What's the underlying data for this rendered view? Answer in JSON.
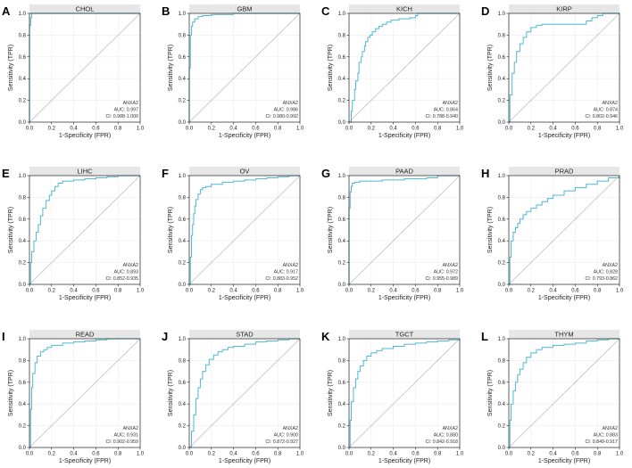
{
  "figure": {
    "axis_ticks": [
      "0.0",
      "0.2",
      "0.4",
      "0.6",
      "0.8",
      "1.0"
    ],
    "curve_color": "#4FB6D8",
    "diagonal_color": "#BFBFBF",
    "strip_color": "#E6E6E6"
  },
  "chart_data": [
    {
      "type": "line",
      "panel_label": "A",
      "title": "CHOL",
      "xlabel": "1-Specificity (FPR)",
      "ylabel": "Sensitivity (TPR)",
      "xlim": [
        0,
        1
      ],
      "ylim": [
        0,
        1
      ],
      "series": [
        {
          "name": "ANXA2",
          "x": [
            0,
            0,
            0.01,
            0.01,
            0.02,
            0.02,
            1.0
          ],
          "y": [
            0,
            0.89,
            0.89,
            0.96,
            0.96,
            1.0,
            1.0
          ]
        },
        {
          "x": [
            0,
            1
          ],
          "y": [
            0,
            1
          ]
        }
      ],
      "annotation": {
        "gene": "ANXA2",
        "auc": "AUC: 0.997",
        "ci": "CI: 0.988-1.000"
      }
    },
    {
      "type": "line",
      "panel_label": "B",
      "title": "GBM",
      "xlabel": "1-Specificity (FPR)",
      "ylabel": "Sensitivity (TPR)",
      "xlim": [
        0,
        1
      ],
      "ylim": [
        0,
        1
      ],
      "series": [
        {
          "name": "ANXA2",
          "x": [
            0,
            0,
            0.01,
            0.02,
            0.03,
            0.05,
            0.08,
            0.12,
            0.2,
            0.4,
            1.0
          ],
          "y": [
            0,
            0.5,
            0.8,
            0.88,
            0.92,
            0.95,
            0.97,
            0.98,
            0.99,
            1.0,
            1.0
          ]
        },
        {
          "x": [
            0,
            1
          ],
          "y": [
            0,
            1
          ]
        }
      ],
      "annotation": {
        "gene": "ANXA2",
        "auc": "AUC: 0.986",
        "ci": "CI: 0.980-0.992"
      }
    },
    {
      "type": "line",
      "panel_label": "C",
      "title": "KICH",
      "xlabel": "1-Specificity (FPR)",
      "ylabel": "Sensitivity (TPR)",
      "xlim": [
        0,
        1
      ],
      "ylim": [
        0,
        1
      ],
      "series": [
        {
          "name": "ANXA2",
          "x": [
            0,
            0.02,
            0.03,
            0.05,
            0.06,
            0.08,
            0.09,
            0.11,
            0.12,
            0.14,
            0.15,
            0.17,
            0.19,
            0.21,
            0.24,
            0.27,
            0.3,
            0.34,
            0.38,
            0.45,
            0.55,
            0.6,
            0.62,
            0.7,
            1.0
          ],
          "y": [
            0,
            0.1,
            0.2,
            0.3,
            0.38,
            0.45,
            0.55,
            0.6,
            0.65,
            0.7,
            0.74,
            0.78,
            0.8,
            0.83,
            0.86,
            0.88,
            0.9,
            0.92,
            0.94,
            0.95,
            0.96,
            0.98,
            1.0,
            1.0,
            1.0
          ]
        },
        {
          "x": [
            0,
            1
          ],
          "y": [
            0,
            1
          ]
        }
      ],
      "annotation": {
        "gene": "ANXA2",
        "auc": "AUC: 0.864",
        "ci": "CI: 0.788-0.940"
      }
    },
    {
      "type": "line",
      "panel_label": "D",
      "title": "KIRP",
      "xlabel": "1-Specificity (FPR)",
      "ylabel": "Sensitivity (TPR)",
      "xlim": [
        0,
        1
      ],
      "ylim": [
        0,
        1
      ],
      "series": [
        {
          "name": "ANXA2",
          "x": [
            0,
            0.01,
            0.03,
            0.05,
            0.07,
            0.1,
            0.13,
            0.16,
            0.2,
            0.25,
            0.3,
            0.4,
            0.5,
            0.6,
            0.7,
            0.75,
            0.8,
            0.85,
            1.0
          ],
          "y": [
            0,
            0.25,
            0.45,
            0.55,
            0.65,
            0.72,
            0.78,
            0.83,
            0.87,
            0.89,
            0.9,
            0.9,
            0.9,
            0.9,
            0.93,
            0.96,
            0.98,
            1.0,
            1.0
          ]
        },
        {
          "x": [
            0,
            1
          ],
          "y": [
            0,
            1
          ]
        }
      ],
      "annotation": {
        "gene": "ANXA2",
        "auc": "AUC: 0.874",
        "ci": "CI: 0.802-0.946"
      }
    },
    {
      "type": "line",
      "panel_label": "E",
      "title": "LIHC",
      "xlabel": "1-Specificity (FPR)",
      "ylabel": "Sensitivity (TPR)",
      "xlim": [
        0,
        1
      ],
      "ylim": [
        0,
        1
      ],
      "series": [
        {
          "name": "ANXA2",
          "x": [
            0,
            0.01,
            0.02,
            0.04,
            0.06,
            0.08,
            0.1,
            0.12,
            0.15,
            0.18,
            0.2,
            0.23,
            0.26,
            0.3,
            0.4,
            0.5,
            0.6,
            0.7,
            0.8,
            0.9,
            1.0
          ],
          "y": [
            0,
            0.2,
            0.3,
            0.4,
            0.48,
            0.55,
            0.63,
            0.7,
            0.77,
            0.82,
            0.86,
            0.9,
            0.93,
            0.95,
            0.96,
            0.97,
            0.98,
            0.99,
            1.0,
            1.0,
            1.0
          ]
        },
        {
          "x": [
            0,
            1
          ],
          "y": [
            0,
            1
          ]
        }
      ],
      "annotation": {
        "gene": "ANXA2",
        "auc": "AUC: 0.893",
        "ci": "CI: 0.852-0.935"
      }
    },
    {
      "type": "line",
      "panel_label": "F",
      "title": "OV",
      "xlabel": "1-Specificity (FPR)",
      "ylabel": "Sensitivity (TPR)",
      "xlim": [
        0,
        1
      ],
      "ylim": [
        0,
        1
      ],
      "series": [
        {
          "name": "ANXA2",
          "x": [
            0,
            0.01,
            0.02,
            0.03,
            0.04,
            0.05,
            0.06,
            0.08,
            0.1,
            0.12,
            0.15,
            0.2,
            0.3,
            0.4,
            0.5,
            0.6,
            0.7,
            0.8,
            0.9,
            1.0
          ],
          "y": [
            0,
            0.25,
            0.45,
            0.55,
            0.65,
            0.72,
            0.78,
            0.83,
            0.87,
            0.89,
            0.9,
            0.92,
            0.94,
            0.95,
            0.96,
            0.97,
            0.98,
            0.99,
            1.0,
            1.0
          ]
        },
        {
          "x": [
            0,
            1
          ],
          "y": [
            0,
            1
          ]
        }
      ],
      "annotation": {
        "gene": "ANXA2",
        "auc": "AUC: 0.917",
        "ci": "CI: 0.883-0.952"
      }
    },
    {
      "type": "line",
      "panel_label": "G",
      "title": "PAAD",
      "xlabel": "1-Specificity (FPR)",
      "ylabel": "Sensitivity (TPR)",
      "xlim": [
        0,
        1
      ],
      "ylim": [
        0,
        1
      ],
      "series": [
        {
          "name": "ANXA2",
          "x": [
            0,
            0,
            0.01,
            0.02,
            0.03,
            0.05,
            0.1,
            0.3,
            0.5,
            0.7,
            0.8,
            1.0
          ],
          "y": [
            0,
            0.7,
            0.85,
            0.9,
            0.93,
            0.94,
            0.95,
            0.96,
            0.97,
            0.98,
            1.0,
            1.0
          ]
        },
        {
          "x": [
            0,
            1
          ],
          "y": [
            0,
            1
          ]
        }
      ],
      "annotation": {
        "gene": "ANXA2",
        "auc": "AUC: 0.972",
        "ci": "CI: 0.955-0.989"
      }
    },
    {
      "type": "line",
      "panel_label": "H",
      "title": "PRAD",
      "xlabel": "1-Specificity (FPR)",
      "ylabel": "Sensitivity (TPR)",
      "xlim": [
        0,
        1
      ],
      "ylim": [
        0,
        1
      ],
      "series": [
        {
          "name": "ANXA2",
          "x": [
            0,
            0.01,
            0.02,
            0.04,
            0.06,
            0.08,
            0.1,
            0.13,
            0.16,
            0.2,
            0.25,
            0.3,
            0.35,
            0.4,
            0.5,
            0.6,
            0.7,
            0.8,
            0.9,
            1.0
          ],
          "y": [
            0,
            0.25,
            0.4,
            0.48,
            0.52,
            0.56,
            0.6,
            0.64,
            0.67,
            0.7,
            0.73,
            0.76,
            0.79,
            0.82,
            0.86,
            0.89,
            0.92,
            0.95,
            0.98,
            1.0
          ]
        },
        {
          "x": [
            0,
            1
          ],
          "y": [
            0,
            1
          ]
        }
      ],
      "annotation": {
        "gene": "ANXA2",
        "auc": "AUC: 0.828",
        "ci": "CI: 0.793-0.862"
      }
    },
    {
      "type": "line",
      "panel_label": "I",
      "title": "READ",
      "xlabel": "1-Specificity (FPR)",
      "ylabel": "Sensitivity (TPR)",
      "xlim": [
        0,
        1
      ],
      "ylim": [
        0,
        1
      ],
      "series": [
        {
          "name": "ANXA2",
          "x": [
            0,
            0.01,
            0.02,
            0.03,
            0.05,
            0.07,
            0.1,
            0.13,
            0.16,
            0.2,
            0.3,
            0.4,
            0.5,
            0.6,
            0.7,
            0.8,
            1.0
          ],
          "y": [
            0,
            0.35,
            0.55,
            0.68,
            0.78,
            0.84,
            0.88,
            0.9,
            0.92,
            0.94,
            0.96,
            0.97,
            0.98,
            0.99,
            1.0,
            1.0,
            1.0
          ]
        },
        {
          "x": [
            0,
            1
          ],
          "y": [
            0,
            1
          ]
        }
      ],
      "annotation": {
        "gene": "ANXA2",
        "auc": "AUC: 0.931",
        "ci": "CI: 0.902-0.959"
      }
    },
    {
      "type": "line",
      "panel_label": "J",
      "title": "STAD",
      "xlabel": "1-Specificity (FPR)",
      "ylabel": "Sensitivity (TPR)",
      "xlim": [
        0,
        1
      ],
      "ylim": [
        0,
        1
      ],
      "series": [
        {
          "name": "ANXA2",
          "x": [
            0,
            0.02,
            0.04,
            0.06,
            0.08,
            0.1,
            0.12,
            0.15,
            0.18,
            0.22,
            0.26,
            0.3,
            0.35,
            0.4,
            0.5,
            0.6,
            0.7,
            0.8,
            0.9,
            1.0
          ],
          "y": [
            0,
            0.15,
            0.3,
            0.45,
            0.55,
            0.63,
            0.7,
            0.76,
            0.81,
            0.85,
            0.88,
            0.9,
            0.92,
            0.93,
            0.95,
            0.97,
            0.98,
            0.99,
            1.0,
            1.0
          ]
        },
        {
          "x": [
            0,
            1
          ],
          "y": [
            0,
            1
          ]
        }
      ],
      "annotation": {
        "gene": "ANXA2",
        "auc": "AUC: 0.900",
        "ci": "CI: 0.872-0.927"
      }
    },
    {
      "type": "line",
      "panel_label": "K",
      "title": "TGCT",
      "xlabel": "1-Specificity (FPR)",
      "ylabel": "Sensitivity (TPR)",
      "xlim": [
        0,
        1
      ],
      "ylim": [
        0,
        1
      ],
      "series": [
        {
          "name": "ANXA2",
          "x": [
            0,
            0.01,
            0.02,
            0.04,
            0.06,
            0.08,
            0.1,
            0.13,
            0.16,
            0.2,
            0.25,
            0.3,
            0.4,
            0.5,
            0.6,
            0.7,
            0.8,
            0.9,
            1.0
          ],
          "y": [
            0,
            0.25,
            0.42,
            0.55,
            0.63,
            0.7,
            0.75,
            0.8,
            0.84,
            0.87,
            0.89,
            0.91,
            0.93,
            0.95,
            0.96,
            0.97,
            0.98,
            0.99,
            1.0
          ]
        },
        {
          "x": [
            0,
            1
          ],
          "y": [
            0,
            1
          ]
        }
      ],
      "annotation": {
        "gene": "ANXA2",
        "auc": "AUC: 0.880",
        "ci": "CI: 0.842-0.918"
      }
    },
    {
      "type": "line",
      "panel_label": "L",
      "title": "THYM",
      "xlabel": "1-Specificity (FPR)",
      "ylabel": "Sensitivity (TPR)",
      "xlim": [
        0,
        1
      ],
      "ylim": [
        0,
        1
      ],
      "series": [
        {
          "name": "ANXA2",
          "x": [
            0,
            0.01,
            0.02,
            0.04,
            0.06,
            0.08,
            0.1,
            0.13,
            0.16,
            0.2,
            0.25,
            0.3,
            0.4,
            0.5,
            0.6,
            0.7,
            0.8,
            0.9,
            1.0
          ],
          "y": [
            0,
            0.25,
            0.4,
            0.52,
            0.6,
            0.67,
            0.72,
            0.78,
            0.83,
            0.87,
            0.9,
            0.92,
            0.94,
            0.95,
            0.96,
            0.98,
            0.99,
            1.0,
            1.0
          ]
        },
        {
          "x": [
            0,
            1
          ],
          "y": [
            0,
            1
          ]
        }
      ],
      "annotation": {
        "gene": "ANXA2",
        "auc": "AUC: 0.883",
        "ci": "CI: 0.849-0.917"
      }
    }
  ]
}
